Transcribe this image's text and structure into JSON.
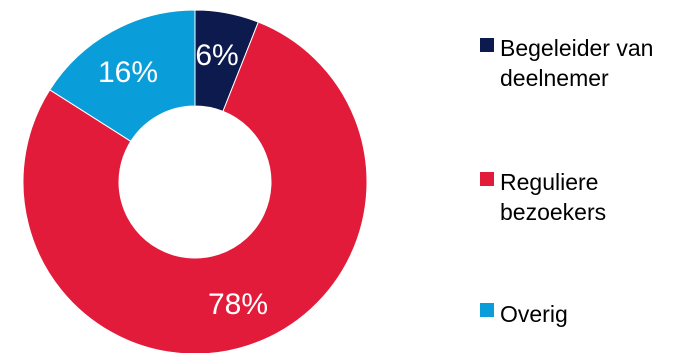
{
  "chart_data": {
    "type": "pie",
    "variant": "donut",
    "title": "",
    "series": [
      {
        "name": "",
        "values": [
          6,
          78,
          16
        ]
      }
    ],
    "categories": [
      "Begeleider van deelnemer",
      "Reguliere bezoekers",
      "Overig"
    ],
    "slices": [
      {
        "label_lines": [
          "Begeleider van",
          "deelnemer"
        ],
        "value": 6,
        "display": "6%",
        "color": "#0d1a4d"
      },
      {
        "label_lines": [
          "Reguliere",
          "bezoekers"
        ],
        "value": 78,
        "display": "78%",
        "color": "#e31b3a"
      },
      {
        "label_lines": [
          "Overig"
        ],
        "value": 16,
        "display": "16%",
        "color": "#099dd9"
      }
    ],
    "legend_position": "right",
    "start_angle": "top, clockwise"
  }
}
